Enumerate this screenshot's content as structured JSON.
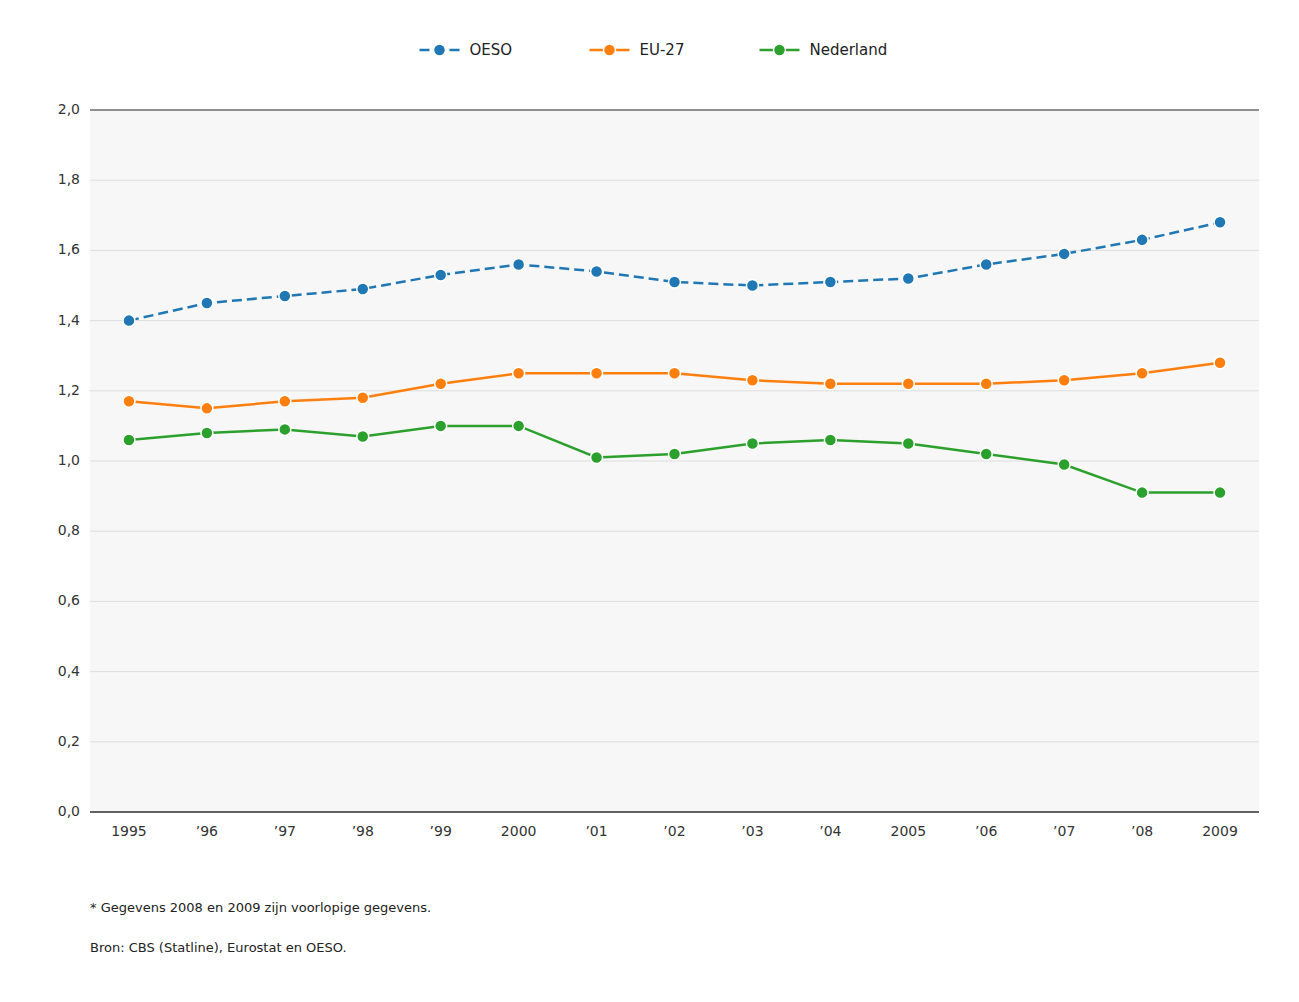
{
  "chart_data": {
    "type": "line",
    "categories": [
      "1995",
      "’96",
      "’97",
      "’98",
      "’99",
      "2000",
      "’01",
      "’02",
      "’03",
      "’04",
      "2005",
      "’06",
      "’07",
      "’08",
      "2009"
    ],
    "series": [
      {
        "name": "OESO",
        "color": "#1f77b4",
        "line_style": "dashed",
        "marker": "circle",
        "values": [
          1.4,
          1.45,
          1.47,
          1.49,
          1.53,
          1.56,
          1.54,
          1.51,
          1.5,
          1.51,
          1.52,
          1.56,
          1.59,
          1.63,
          1.68
        ]
      },
      {
        "name": "EU-27",
        "color": "#ff7f0e",
        "line_style": "solid",
        "marker": "circle",
        "values": [
          1.17,
          1.15,
          1.17,
          1.18,
          1.22,
          1.25,
          1.25,
          1.25,
          1.23,
          1.22,
          1.22,
          1.22,
          1.23,
          1.25,
          1.28
        ]
      },
      {
        "name": "Nederland",
        "color": "#2ca02c",
        "line_style": "solid",
        "marker": "circle",
        "values": [
          1.06,
          1.08,
          1.09,
          1.07,
          1.1,
          1.1,
          1.01,
          1.02,
          1.05,
          1.06,
          1.05,
          1.02,
          0.99,
          0.91,
          0.91
        ]
      }
    ],
    "ylim": [
      0.0,
      2.0
    ],
    "yticks": [
      {
        "value": 0.0,
        "label": "0,0"
      },
      {
        "value": 0.2,
        "label": "0,2"
      },
      {
        "value": 0.4,
        "label": "0,4"
      },
      {
        "value": 0.6,
        "label": "0,6"
      },
      {
        "value": 0.8,
        "label": "0,8"
      },
      {
        "value": 1.0,
        "label": "1,0"
      },
      {
        "value": 1.2,
        "label": "1,2"
      },
      {
        "value": 1.4,
        "label": "1,4"
      },
      {
        "value": 1.6,
        "label": "1,6"
      },
      {
        "value": 1.8,
        "label": "1,8"
      },
      {
        "value": 2.0,
        "label": "2,0"
      }
    ],
    "grid": true,
    "legend": "top",
    "annotations": [
      "*  Gegevens 2008 en 2009 zijn voorlopige gegevens.",
      "Bron: CBS (Statline), Eurostat en OESO."
    ]
  }
}
